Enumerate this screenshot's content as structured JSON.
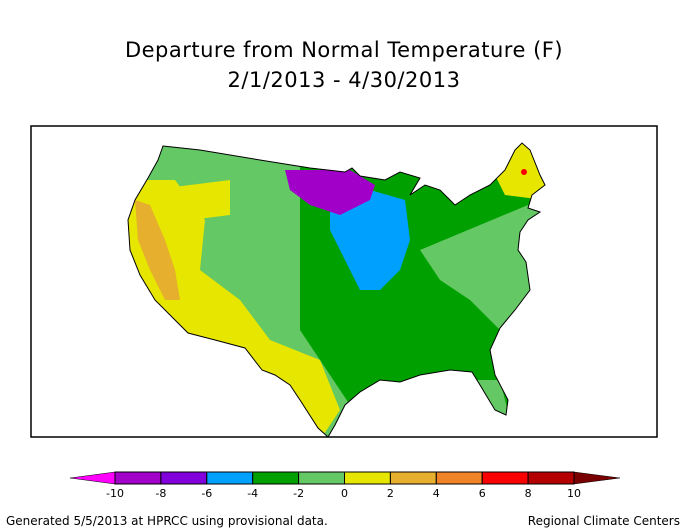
{
  "title": "Departure from Normal Temperature (F)",
  "subtitle": "2/1/2013 - 4/30/2013",
  "footer_left": "Generated 5/5/2013 at HPRCC using provisional data.",
  "footer_right": "Regional Climate Centers",
  "legend": {
    "ticks": [
      "-10",
      "-8",
      "-6",
      "-4",
      "-2",
      "0",
      "2",
      "4",
      "6",
      "8",
      "10"
    ],
    "below_color": "#ff00ff",
    "above_color": "#780000",
    "colors": [
      "#a000c8",
      "#8200dc",
      "#00a0ff",
      "#00a000",
      "#64c864",
      "#e6e600",
      "#e6af2d",
      "#f08228",
      "#fa0000",
      "#b40000"
    ]
  },
  "map_colors": {
    "minus10_8": "#a000c8",
    "minus6_4": "#00a0ff",
    "minus4_2": "#00a000",
    "minus2_0": "#64c864",
    "zero_2": "#e6e600",
    "two_4": "#e6af2d",
    "four_6": "#f08228",
    "six_8": "#fa0000"
  }
}
